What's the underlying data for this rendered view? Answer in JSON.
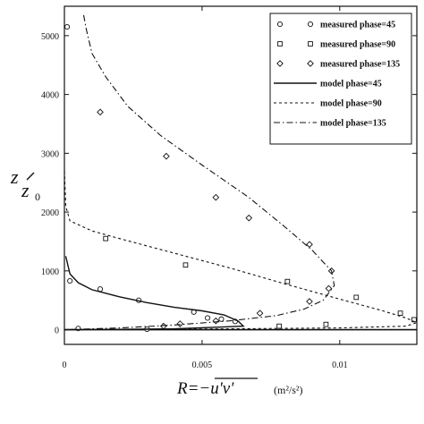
{
  "chart_data": {
    "type": "line",
    "title": "",
    "ylabel_main": "z",
    "ylabel_sub": "z",
    "ylabel_subscript": "0",
    "xlabel": "R=−u'v'",
    "xunit": "(m²/s²)",
    "xlim": [
      0,
      0.0128
    ],
    "ylim": [
      -250,
      5500
    ],
    "xticks": [
      {
        "value": 0,
        "label": "0"
      },
      {
        "value": 0.005,
        "label": "0.005"
      },
      {
        "value": 0.01,
        "label": "0.01"
      }
    ],
    "yticks": [
      {
        "value": 0,
        "label": "0"
      },
      {
        "value": 1000,
        "label": "1000"
      },
      {
        "value": 2000,
        "label": "2000"
      },
      {
        "value": 3000,
        "label": "3000"
      },
      {
        "value": 4000,
        "label": "4000"
      },
      {
        "value": 5000,
        "label": "5000"
      }
    ],
    "legend_position": "top-right",
    "series": [
      {
        "name": "measured phase=45",
        "kind": "scatter",
        "marker": "circle",
        "points": [
          [
            0.0001,
            5150
          ],
          [
            0.0002,
            830
          ],
          [
            0.0013,
            690
          ],
          [
            0.0027,
            500
          ],
          [
            0.0047,
            300
          ],
          [
            0.0052,
            200
          ],
          [
            0.0057,
            180
          ],
          [
            0.0062,
            140
          ],
          [
            0.0005,
            20
          ],
          [
            0.003,
            10
          ]
        ]
      },
      {
        "name": "measured phase=90",
        "kind": "scatter",
        "marker": "square",
        "points": [
          [
            0.0015,
            1550
          ],
          [
            0.0044,
            1100
          ],
          [
            0.0081,
            820
          ],
          [
            0.0106,
            550
          ],
          [
            0.0122,
            280
          ],
          [
            0.0127,
            170
          ],
          [
            0.0095,
            90
          ],
          [
            0.0078,
            60
          ]
        ]
      },
      {
        "name": "measured phase=135",
        "kind": "scatter",
        "marker": "diamond",
        "points": [
          [
            0.0013,
            3700
          ],
          [
            0.0037,
            2950
          ],
          [
            0.0055,
            2250
          ],
          [
            0.0067,
            1900
          ],
          [
            0.0089,
            1450
          ],
          [
            0.0097,
            1000
          ],
          [
            0.0096,
            700
          ],
          [
            0.0089,
            480
          ],
          [
            0.0071,
            280
          ],
          [
            0.0055,
            150
          ],
          [
            0.0042,
            100
          ],
          [
            0.0036,
            60
          ]
        ]
      },
      {
        "name": "model phase=45",
        "kind": "line",
        "dash": "solid",
        "points": [
          [
            5e-05,
            1250
          ],
          [
            0.0002,
            950
          ],
          [
            0.0005,
            800
          ],
          [
            0.001,
            680
          ],
          [
            0.002,
            560
          ],
          [
            0.003,
            460
          ],
          [
            0.004,
            380
          ],
          [
            0.005,
            320
          ],
          [
            0.0058,
            250
          ],
          [
            0.0063,
            150
          ],
          [
            0.0065,
            60
          ],
          [
            0.004,
            15
          ],
          [
            0.002,
            6
          ],
          [
            0.0,
            0
          ]
        ]
      },
      {
        "name": "model phase=90",
        "kind": "line",
        "dash": "dashed",
        "points": [
          [
            0.0,
            2700
          ],
          [
            5e-05,
            2100
          ],
          [
            0.0002,
            1850
          ],
          [
            0.001,
            1680
          ],
          [
            0.002,
            1550
          ],
          [
            0.004,
            1300
          ],
          [
            0.006,
            1050
          ],
          [
            0.008,
            780
          ],
          [
            0.01,
            520
          ],
          [
            0.0115,
            330
          ],
          [
            0.0124,
            200
          ],
          [
            0.0128,
            120
          ],
          [
            0.0124,
            60
          ],
          [
            0.01,
            30
          ],
          [
            0.006,
            15
          ],
          [
            0.003,
            6
          ],
          [
            0.0,
            0
          ]
        ]
      },
      {
        "name": "model phase=135",
        "kind": "line",
        "dash": "dashdot",
        "points": [
          [
            0.0007,
            5350
          ],
          [
            0.0008,
            5100
          ],
          [
            0.001,
            4700
          ],
          [
            0.0015,
            4300
          ],
          [
            0.0023,
            3800
          ],
          [
            0.0035,
            3300
          ],
          [
            0.005,
            2800
          ],
          [
            0.0067,
            2250
          ],
          [
            0.008,
            1750
          ],
          [
            0.009,
            1350
          ],
          [
            0.0097,
            1000
          ],
          [
            0.0098,
            750
          ],
          [
            0.0094,
            500
          ],
          [
            0.0087,
            350
          ],
          [
            0.0077,
            240
          ],
          [
            0.006,
            150
          ],
          [
            0.004,
            80
          ],
          [
            0.002,
            30
          ],
          [
            0.0,
            0
          ]
        ]
      }
    ]
  }
}
